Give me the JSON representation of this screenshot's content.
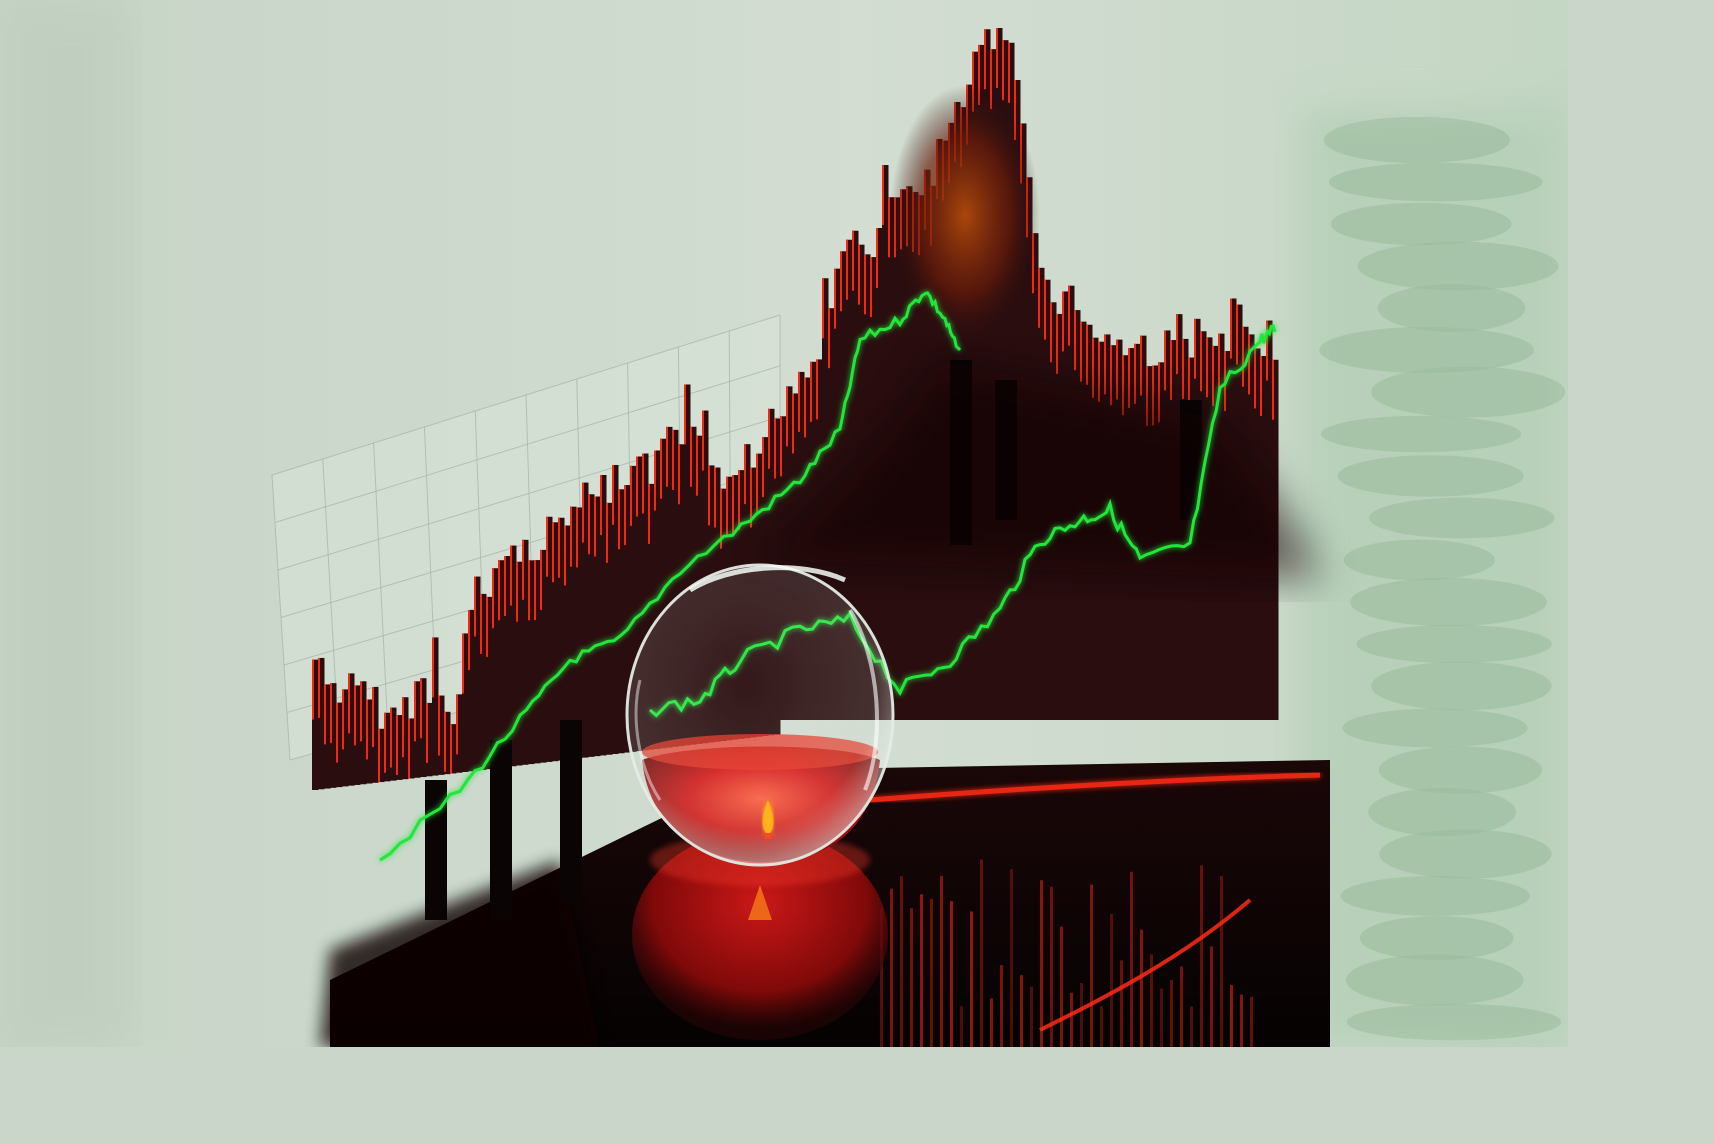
{
  "palette": {
    "background": "#cbd8cb",
    "background_light": "#dbe5da",
    "grid_line": "#a9b8ab",
    "bar_fill": "#2a0d0f",
    "bar_edge": "#ff2a12",
    "peak_glow": "#a8420c",
    "trend_line": "#22e63a",
    "glass_rim": "#e8efe9",
    "liquid": "#d11414",
    "flame": "#ffb21a",
    "table": "#0d0506",
    "reflection_line": "#ff2a18",
    "right_panel": "#a7c9ab"
  },
  "scene": {
    "subject": "stock-chart-with-glass-bowl",
    "elements": [
      "grid-panel",
      "red-black-bar-chart",
      "green-trend-line",
      "glass-bowl-with-red-liquid",
      "candle-flame",
      "dark-reflective-table",
      "right-textured-panel"
    ]
  }
}
